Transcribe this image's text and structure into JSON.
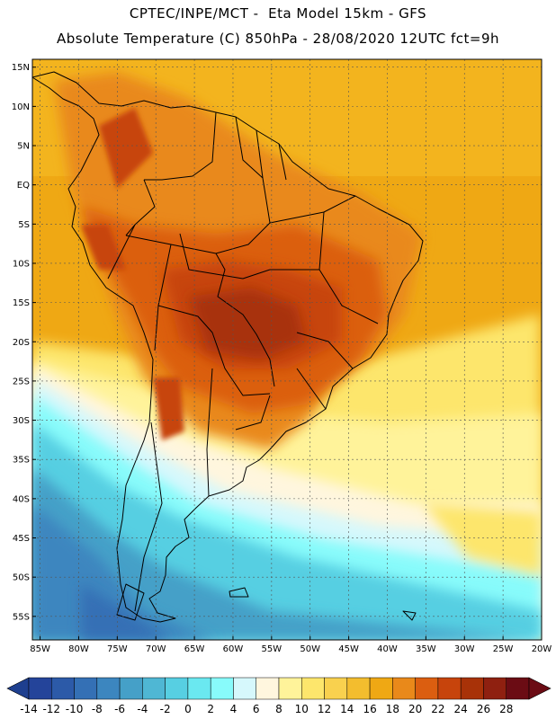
{
  "header": {
    "line1": "CPTEC/INPE/MCT -  Eta Model 15km - GFS",
    "line2": "Absolute Temperature (C) 850hPa - 28/08/2020 12UTC fct=9h"
  },
  "map": {
    "region": "South America",
    "lon_range": [
      -86,
      -20
    ],
    "lat_range": [
      -58,
      16
    ],
    "lat_ticks": [
      {
        "v": 15,
        "label": "15N"
      },
      {
        "v": 10,
        "label": "10N"
      },
      {
        "v": 5,
        "label": "5N"
      },
      {
        "v": 0,
        "label": "EQ"
      },
      {
        "v": -5,
        "label": "5S"
      },
      {
        "v": -10,
        "label": "10S"
      },
      {
        "v": -15,
        "label": "15S"
      },
      {
        "v": -20,
        "label": "20S"
      },
      {
        "v": -25,
        "label": "25S"
      },
      {
        "v": -30,
        "label": "30S"
      },
      {
        "v": -35,
        "label": "35S"
      },
      {
        "v": -40,
        "label": "40S"
      },
      {
        "v": -45,
        "label": "45S"
      },
      {
        "v": -50,
        "label": "50S"
      },
      {
        "v": -55,
        "label": "55S"
      }
    ],
    "lon_ticks": [
      {
        "v": -85,
        "label": "85W"
      },
      {
        "v": -80,
        "label": "80W"
      },
      {
        "v": -75,
        "label": "75W"
      },
      {
        "v": -70,
        "label": "70W"
      },
      {
        "v": -65,
        "label": "65W"
      },
      {
        "v": -60,
        "label": "60W"
      },
      {
        "v": -55,
        "label": "55W"
      },
      {
        "v": -50,
        "label": "50W"
      },
      {
        "v": -45,
        "label": "45W"
      },
      {
        "v": -40,
        "label": "40W"
      },
      {
        "v": -35,
        "label": "35W"
      },
      {
        "v": -30,
        "label": "30W"
      },
      {
        "v": -25,
        "label": "25W"
      },
      {
        "v": -20,
        "label": "20W"
      }
    ]
  },
  "colorbar": {
    "low_color": "#1e3f8f",
    "high_color": "#6b0c14",
    "bins": [
      "#24449a",
      "#2c5aa8",
      "#3470b5",
      "#3c86bf",
      "#45a0c8",
      "#4fb7d4",
      "#57cfe2",
      "#6ae8f0",
      "#88fbfb",
      "#d6f8fc",
      "#fff6de",
      "#fff39a",
      "#fde66c",
      "#f9d14e",
      "#f3bd2e",
      "#efa814",
      "#e9891a",
      "#db5e10",
      "#c7440c",
      "#a83208",
      "#8f2010",
      "#6b0c14"
    ],
    "labels": [
      "-14",
      "-12",
      "-10",
      "-8",
      "-6",
      "-4",
      "-2",
      "0",
      "2",
      "4",
      "6",
      "8",
      "10",
      "12",
      "14",
      "16",
      "18",
      "20",
      "22",
      "24",
      "26",
      "28"
    ]
  }
}
